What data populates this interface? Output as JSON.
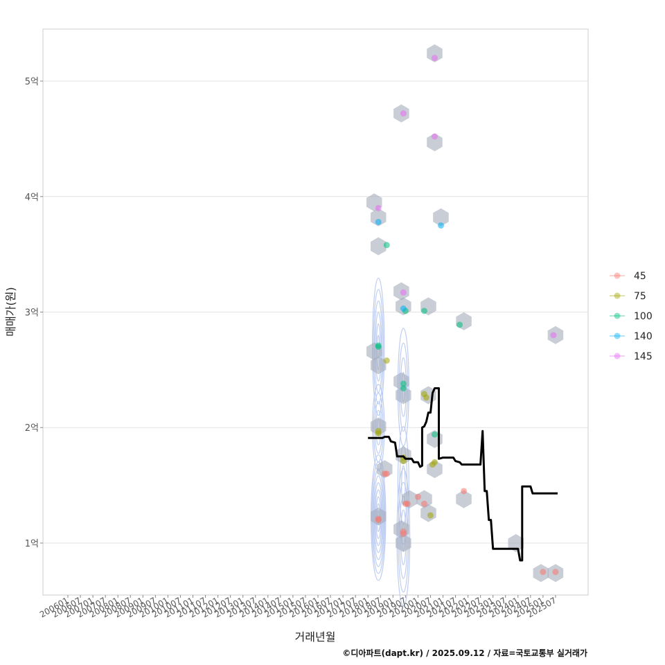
{
  "chart_data": {
    "type": "scatter",
    "ylabel": "매매가(원)",
    "xlabel": "거래년월",
    "credit": "©디아파트(dapt.kr) / 2025.09.12 / 자료=국토교통부 실거래가",
    "ylim": [
      0.55,
      5.45
    ],
    "y_ticks": [
      {
        "value": 1,
        "label": "1억"
      },
      {
        "value": 2,
        "label": "2억"
      },
      {
        "value": 3,
        "label": "3억"
      },
      {
        "value": 4,
        "label": "4억"
      },
      {
        "value": 5,
        "label": "5억"
      }
    ],
    "x_ticks": [
      "200601",
      "200607",
      "200701",
      "200707",
      "200801",
      "200807",
      "200901",
      "200907",
      "201001",
      "201007",
      "201101",
      "201107",
      "201201",
      "201207",
      "201301",
      "201307",
      "201401",
      "201407",
      "201501",
      "201507",
      "201601",
      "201607",
      "201701",
      "201707",
      "201801",
      "201807",
      "201901",
      "201907",
      "202001",
      "202007",
      "202101",
      "202107",
      "202201",
      "202207",
      "202301",
      "202307",
      "202401",
      "202407",
      "202501",
      "202507"
    ],
    "legend": [
      {
        "name": "45",
        "color": "#F8766D"
      },
      {
        "name": "75",
        "color": "#A3A500"
      },
      {
        "name": "100",
        "color": "#00BF7D"
      },
      {
        "name": "140",
        "color": "#00B0F6"
      },
      {
        "name": "145",
        "color": "#E76BF3"
      }
    ],
    "series": [
      {
        "name": "45",
        "color": "#F8766D",
        "points": [
          {
            "month": "2018-06",
            "value": 1.2
          },
          {
            "month": "2018-06",
            "value": 1.21
          },
          {
            "month": "2018-09",
            "value": 1.6
          },
          {
            "month": "2018-10",
            "value": 1.6
          },
          {
            "month": "2019-06",
            "value": 1.08
          },
          {
            "month": "2019-06",
            "value": 1.1
          },
          {
            "month": "2019-07",
            "value": 1.34
          },
          {
            "month": "2019-08",
            "value": 1.34
          },
          {
            "month": "2020-01",
            "value": 1.4
          },
          {
            "month": "2020-04",
            "value": 1.34
          },
          {
            "month": "2021-11",
            "value": 1.45
          },
          {
            "month": "2025-01",
            "value": 0.75
          },
          {
            "month": "2025-07",
            "value": 0.75
          }
        ]
      },
      {
        "name": "75",
        "color": "#A3A500",
        "points": [
          {
            "month": "2018-06",
            "value": 1.95
          },
          {
            "month": "2018-06",
            "value": 1.97
          },
          {
            "month": "2018-10",
            "value": 2.58
          },
          {
            "month": "2019-06",
            "value": 1.71
          },
          {
            "month": "2019-06",
            "value": 1.74
          },
          {
            "month": "2020-04",
            "value": 2.29
          },
          {
            "month": "2020-05",
            "value": 2.26
          },
          {
            "month": "2020-07",
            "value": 1.24
          },
          {
            "month": "2020-08",
            "value": 1.68
          },
          {
            "month": "2020-09",
            "value": 1.7
          }
        ]
      },
      {
        "name": "100",
        "color": "#00BF7D",
        "points": [
          {
            "month": "2018-06",
            "value": 2.7
          },
          {
            "month": "2018-06",
            "value": 2.71
          },
          {
            "month": "2018-10",
            "value": 3.58
          },
          {
            "month": "2019-06",
            "value": 2.34
          },
          {
            "month": "2019-06",
            "value": 2.38
          },
          {
            "month": "2019-07",
            "value": 3.01
          },
          {
            "month": "2020-04",
            "value": 3.01
          },
          {
            "month": "2020-09",
            "value": 1.94
          },
          {
            "month": "2021-09",
            "value": 2.89
          }
        ]
      },
      {
        "name": "140",
        "color": "#00B0F6",
        "points": [
          {
            "month": "2018-06",
            "value": 3.78
          },
          {
            "month": "2019-06",
            "value": 3.03
          },
          {
            "month": "2020-12",
            "value": 3.75
          }
        ]
      },
      {
        "name": "145",
        "color": "#E76BF3",
        "points": [
          {
            "month": "2018-06",
            "value": 3.9
          },
          {
            "month": "2019-06",
            "value": 4.72
          },
          {
            "month": "2019-06",
            "value": 3.17
          },
          {
            "month": "2020-09",
            "value": 5.2
          },
          {
            "month": "2020-09",
            "value": 4.52
          },
          {
            "month": "2025-06",
            "value": 2.8
          }
        ]
      }
    ],
    "hexbins": [
      {
        "month": "2018-04",
        "value": 3.95
      },
      {
        "month": "2018-06",
        "value": 3.82
      },
      {
        "month": "2018-06",
        "value": 3.57
      },
      {
        "month": "2018-04",
        "value": 2.66
      },
      {
        "month": "2018-06",
        "value": 2.54
      },
      {
        "month": "2018-06",
        "value": 2.01
      },
      {
        "month": "2018-06",
        "value": 1.23
      },
      {
        "month": "2018-09",
        "value": 1.64
      },
      {
        "month": "2019-05",
        "value": 4.72
      },
      {
        "month": "2019-05",
        "value": 3.18
      },
      {
        "month": "2019-06",
        "value": 3.05
      },
      {
        "month": "2019-05",
        "value": 2.4
      },
      {
        "month": "2019-06",
        "value": 2.28
      },
      {
        "month": "2019-06",
        "value": 1.76
      },
      {
        "month": "2019-05",
        "value": 1.12
      },
      {
        "month": "2019-06",
        "value": 1.0
      },
      {
        "month": "2019-09",
        "value": 1.38
      },
      {
        "month": "2020-04",
        "value": 1.38
      },
      {
        "month": "2020-06",
        "value": 1.26
      },
      {
        "month": "2020-06",
        "value": 3.05
      },
      {
        "month": "2020-06",
        "value": 2.28
      },
      {
        "month": "2020-09",
        "value": 5.24
      },
      {
        "month": "2020-09",
        "value": 4.47
      },
      {
        "month": "2020-09",
        "value": 1.9
      },
      {
        "month": "2020-09",
        "value": 1.64
      },
      {
        "month": "2020-12",
        "value": 3.82
      },
      {
        "month": "2021-11",
        "value": 2.92
      },
      {
        "month": "2021-11",
        "value": 1.38
      },
      {
        "month": "2023-12",
        "value": 1.0
      },
      {
        "month": "2024-12",
        "value": 0.74
      },
      {
        "month": "2025-07",
        "value": 0.74
      },
      {
        "month": "2025-07",
        "value": 2.8
      }
    ],
    "density_contours": [
      {
        "center_month": "2018-06",
        "center_value": 1.22,
        "sx_months": 1.6,
        "sy_value": 0.32,
        "levels": 9
      },
      {
        "center_month": "2018-06",
        "center_value": 2.0,
        "sx_months": 1.3,
        "sy_value": 0.22,
        "levels": 5
      },
      {
        "center_month": "2018-06",
        "center_value": 2.7,
        "sx_months": 1.3,
        "sy_value": 0.35,
        "levels": 6
      },
      {
        "center_month": "2019-06",
        "center_value": 1.05,
        "sx_months": 1.4,
        "sy_value": 0.35,
        "levels": 5
      },
      {
        "center_month": "2019-06",
        "center_value": 1.5,
        "sx_months": 1.2,
        "sy_value": 0.3,
        "levels": 3
      },
      {
        "center_month": "2019-06",
        "center_value": 2.35,
        "sx_months": 1.2,
        "sy_value": 0.3,
        "levels": 4
      }
    ],
    "median_line": [
      {
        "month": "2018-01",
        "value": 1.91
      },
      {
        "month": "2018-08",
        "value": 1.91
      },
      {
        "month": "2018-09",
        "value": 1.92
      },
      {
        "month": "2018-11",
        "value": 1.92
      },
      {
        "month": "2018-12",
        "value": 1.88
      },
      {
        "month": "2019-02",
        "value": 1.87
      },
      {
        "month": "2019-03",
        "value": 1.75
      },
      {
        "month": "2019-06",
        "value": 1.75
      },
      {
        "month": "2019-07",
        "value": 1.73
      },
      {
        "month": "2019-10",
        "value": 1.73
      },
      {
        "month": "2019-11",
        "value": 1.7
      },
      {
        "month": "2020-01",
        "value": 1.7
      },
      {
        "month": "2020-02",
        "value": 1.66
      },
      {
        "month": "2020-03",
        "value": 1.67
      },
      {
        "month": "2020-03",
        "value": 2.0
      },
      {
        "month": "2020-04",
        "value": 2.01
      },
      {
        "month": "2020-05",
        "value": 2.05
      },
      {
        "month": "2020-06",
        "value": 2.13
      },
      {
        "month": "2020-07",
        "value": 2.13
      },
      {
        "month": "2020-08",
        "value": 2.3
      },
      {
        "month": "2020-09",
        "value": 2.34
      },
      {
        "month": "2020-11",
        "value": 2.34
      },
      {
        "month": "2020-11",
        "value": 1.73
      },
      {
        "month": "2021-01",
        "value": 1.74
      },
      {
        "month": "2021-06",
        "value": 1.74
      },
      {
        "month": "2021-07",
        "value": 1.71
      },
      {
        "month": "2021-09",
        "value": 1.7
      },
      {
        "month": "2021-10",
        "value": 1.68
      },
      {
        "month": "2022-07",
        "value": 1.68
      },
      {
        "month": "2022-08",
        "value": 1.97
      },
      {
        "month": "2022-09",
        "value": 1.45
      },
      {
        "month": "2022-10",
        "value": 1.45
      },
      {
        "month": "2022-11",
        "value": 1.2
      },
      {
        "month": "2022-12",
        "value": 1.2
      },
      {
        "month": "2023-01",
        "value": 0.95
      },
      {
        "month": "2024-01",
        "value": 0.95
      },
      {
        "month": "2024-02",
        "value": 0.85
      },
      {
        "month": "2024-03",
        "value": 0.85
      },
      {
        "month": "2024-03",
        "value": 1.49
      },
      {
        "month": "2024-07",
        "value": 1.49
      },
      {
        "month": "2024-08",
        "value": 1.43
      },
      {
        "month": "2025-08",
        "value": 1.43
      }
    ]
  },
  "colors": {
    "panel_border": "#cccccc",
    "grid": "#e3e3e3",
    "hexbin": "#a4abba",
    "contour": "#b7c8f0",
    "median_line": "#000000"
  }
}
